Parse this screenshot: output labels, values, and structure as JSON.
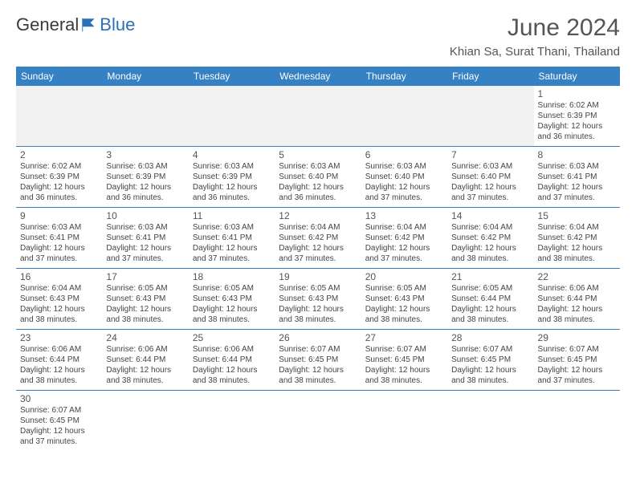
{
  "logo": {
    "text1": "General",
    "text2": "Blue"
  },
  "title": "June 2024",
  "location": "Khian Sa, Surat Thani, Thailand",
  "colors": {
    "header_bg": "#3581c4",
    "header_text": "#ffffff",
    "cell_border": "#3581c4",
    "empty_bg": "#f1f1f1",
    "text": "#444444",
    "title_color": "#555555"
  },
  "days": [
    "Sunday",
    "Monday",
    "Tuesday",
    "Wednesday",
    "Thursday",
    "Friday",
    "Saturday"
  ],
  "grid": [
    [
      null,
      null,
      null,
      null,
      null,
      null,
      {
        "n": "1",
        "sr": "6:02 AM",
        "ss": "6:39 PM",
        "dl": "12 hours and 36 minutes."
      }
    ],
    [
      {
        "n": "2",
        "sr": "6:02 AM",
        "ss": "6:39 PM",
        "dl": "12 hours and 36 minutes."
      },
      {
        "n": "3",
        "sr": "6:03 AM",
        "ss": "6:39 PM",
        "dl": "12 hours and 36 minutes."
      },
      {
        "n": "4",
        "sr": "6:03 AM",
        "ss": "6:39 PM",
        "dl": "12 hours and 36 minutes."
      },
      {
        "n": "5",
        "sr": "6:03 AM",
        "ss": "6:40 PM",
        "dl": "12 hours and 36 minutes."
      },
      {
        "n": "6",
        "sr": "6:03 AM",
        "ss": "6:40 PM",
        "dl": "12 hours and 37 minutes."
      },
      {
        "n": "7",
        "sr": "6:03 AM",
        "ss": "6:40 PM",
        "dl": "12 hours and 37 minutes."
      },
      {
        "n": "8",
        "sr": "6:03 AM",
        "ss": "6:41 PM",
        "dl": "12 hours and 37 minutes."
      }
    ],
    [
      {
        "n": "9",
        "sr": "6:03 AM",
        "ss": "6:41 PM",
        "dl": "12 hours and 37 minutes."
      },
      {
        "n": "10",
        "sr": "6:03 AM",
        "ss": "6:41 PM",
        "dl": "12 hours and 37 minutes."
      },
      {
        "n": "11",
        "sr": "6:03 AM",
        "ss": "6:41 PM",
        "dl": "12 hours and 37 minutes."
      },
      {
        "n": "12",
        "sr": "6:04 AM",
        "ss": "6:42 PM",
        "dl": "12 hours and 37 minutes."
      },
      {
        "n": "13",
        "sr": "6:04 AM",
        "ss": "6:42 PM",
        "dl": "12 hours and 37 minutes."
      },
      {
        "n": "14",
        "sr": "6:04 AM",
        "ss": "6:42 PM",
        "dl": "12 hours and 38 minutes."
      },
      {
        "n": "15",
        "sr": "6:04 AM",
        "ss": "6:42 PM",
        "dl": "12 hours and 38 minutes."
      }
    ],
    [
      {
        "n": "16",
        "sr": "6:04 AM",
        "ss": "6:43 PM",
        "dl": "12 hours and 38 minutes."
      },
      {
        "n": "17",
        "sr": "6:05 AM",
        "ss": "6:43 PM",
        "dl": "12 hours and 38 minutes."
      },
      {
        "n": "18",
        "sr": "6:05 AM",
        "ss": "6:43 PM",
        "dl": "12 hours and 38 minutes."
      },
      {
        "n": "19",
        "sr": "6:05 AM",
        "ss": "6:43 PM",
        "dl": "12 hours and 38 minutes."
      },
      {
        "n": "20",
        "sr": "6:05 AM",
        "ss": "6:43 PM",
        "dl": "12 hours and 38 minutes."
      },
      {
        "n": "21",
        "sr": "6:05 AM",
        "ss": "6:44 PM",
        "dl": "12 hours and 38 minutes."
      },
      {
        "n": "22",
        "sr": "6:06 AM",
        "ss": "6:44 PM",
        "dl": "12 hours and 38 minutes."
      }
    ],
    [
      {
        "n": "23",
        "sr": "6:06 AM",
        "ss": "6:44 PM",
        "dl": "12 hours and 38 minutes."
      },
      {
        "n": "24",
        "sr": "6:06 AM",
        "ss": "6:44 PM",
        "dl": "12 hours and 38 minutes."
      },
      {
        "n": "25",
        "sr": "6:06 AM",
        "ss": "6:44 PM",
        "dl": "12 hours and 38 minutes."
      },
      {
        "n": "26",
        "sr": "6:07 AM",
        "ss": "6:45 PM",
        "dl": "12 hours and 38 minutes."
      },
      {
        "n": "27",
        "sr": "6:07 AM",
        "ss": "6:45 PM",
        "dl": "12 hours and 38 minutes."
      },
      {
        "n": "28",
        "sr": "6:07 AM",
        "ss": "6:45 PM",
        "dl": "12 hours and 38 minutes."
      },
      {
        "n": "29",
        "sr": "6:07 AM",
        "ss": "6:45 PM",
        "dl": "12 hours and 37 minutes."
      }
    ],
    [
      {
        "n": "30",
        "sr": "6:07 AM",
        "ss": "6:45 PM",
        "dl": "12 hours and 37 minutes."
      },
      null,
      null,
      null,
      null,
      null,
      null
    ]
  ],
  "labels": {
    "sunrise": "Sunrise:",
    "sunset": "Sunset:",
    "daylight": "Daylight:"
  }
}
